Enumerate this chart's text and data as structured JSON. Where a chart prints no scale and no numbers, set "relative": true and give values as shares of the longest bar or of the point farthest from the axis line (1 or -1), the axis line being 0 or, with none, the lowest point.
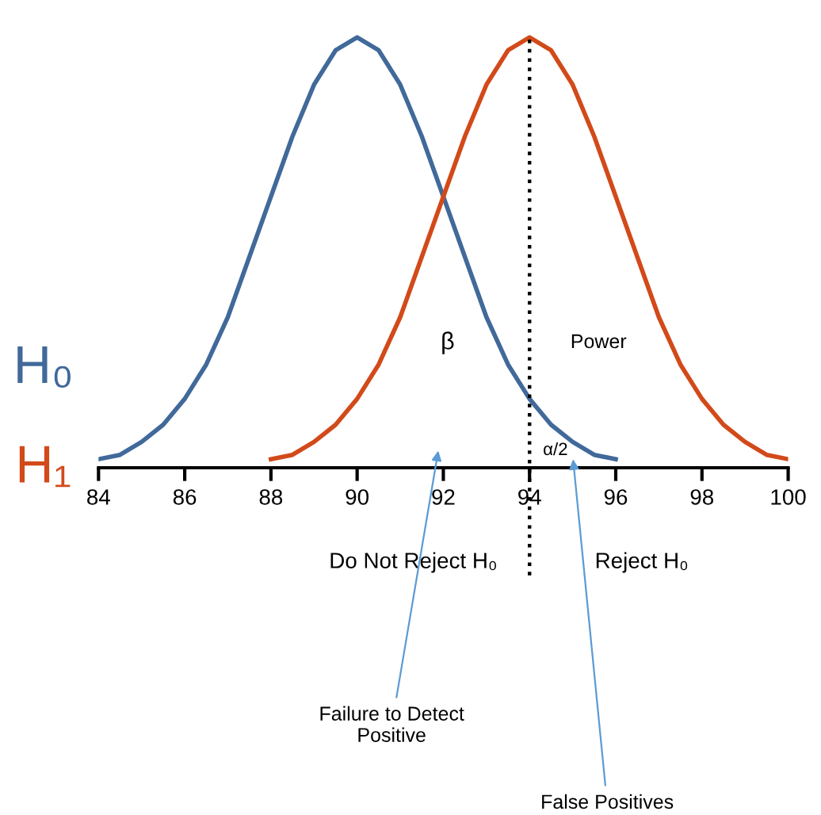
{
  "chart_data": {
    "type": "line",
    "relative": true,
    "series": [
      {
        "name": "H₀",
        "color": "#41699a",
        "x": [
          84,
          84.5,
          85,
          85.5,
          86,
          86.5,
          87,
          87.5,
          88,
          88.5,
          89,
          89.5,
          90,
          90.5,
          91,
          91.5,
          92,
          92.5,
          93,
          93.5,
          94,
          94.5,
          95,
          95.5,
          96
        ],
        "values": [
          0.02,
          0.03,
          0.06,
          0.1,
          0.16,
          0.24,
          0.35,
          0.49,
          0.63,
          0.77,
          0.89,
          0.97,
          1,
          0.97,
          0.89,
          0.77,
          0.63,
          0.49,
          0.35,
          0.24,
          0.16,
          0.1,
          0.06,
          0.03,
          0.02
        ]
      },
      {
        "name": "H₁",
        "color": "#d24a1a",
        "x": [
          88,
          88.5,
          89,
          89.5,
          90,
          90.5,
          91,
          91.5,
          92,
          92.5,
          93,
          93.5,
          94,
          94.5,
          95,
          95.5,
          96,
          96.5,
          97,
          97.5,
          98,
          98.5,
          99,
          99.5,
          100
        ],
        "values": [
          0.02,
          0.03,
          0.06,
          0.1,
          0.16,
          0.24,
          0.35,
          0.49,
          0.63,
          0.77,
          0.89,
          0.97,
          1,
          0.97,
          0.89,
          0.77,
          0.63,
          0.49,
          0.35,
          0.24,
          0.16,
          0.1,
          0.06,
          0.03,
          0.02
        ]
      }
    ],
    "xlim": [
      84,
      100
    ],
    "xticks": [
      84,
      86,
      88,
      90,
      92,
      94,
      96,
      98,
      100
    ],
    "tick_labels": "x",
    "grid": false,
    "legend": "left",
    "line_style": "solid",
    "marker": "none",
    "ref_lines": [
      {
        "axis": "x",
        "value": 94,
        "color": "#000000",
        "line_style": "dotted"
      }
    ],
    "annotations": [
      "β",
      "Power",
      "α/2",
      "Do Not Reject H₀",
      "Reject H₀",
      "Failure to Detect\nPositive",
      "False Positives"
    ]
  }
}
